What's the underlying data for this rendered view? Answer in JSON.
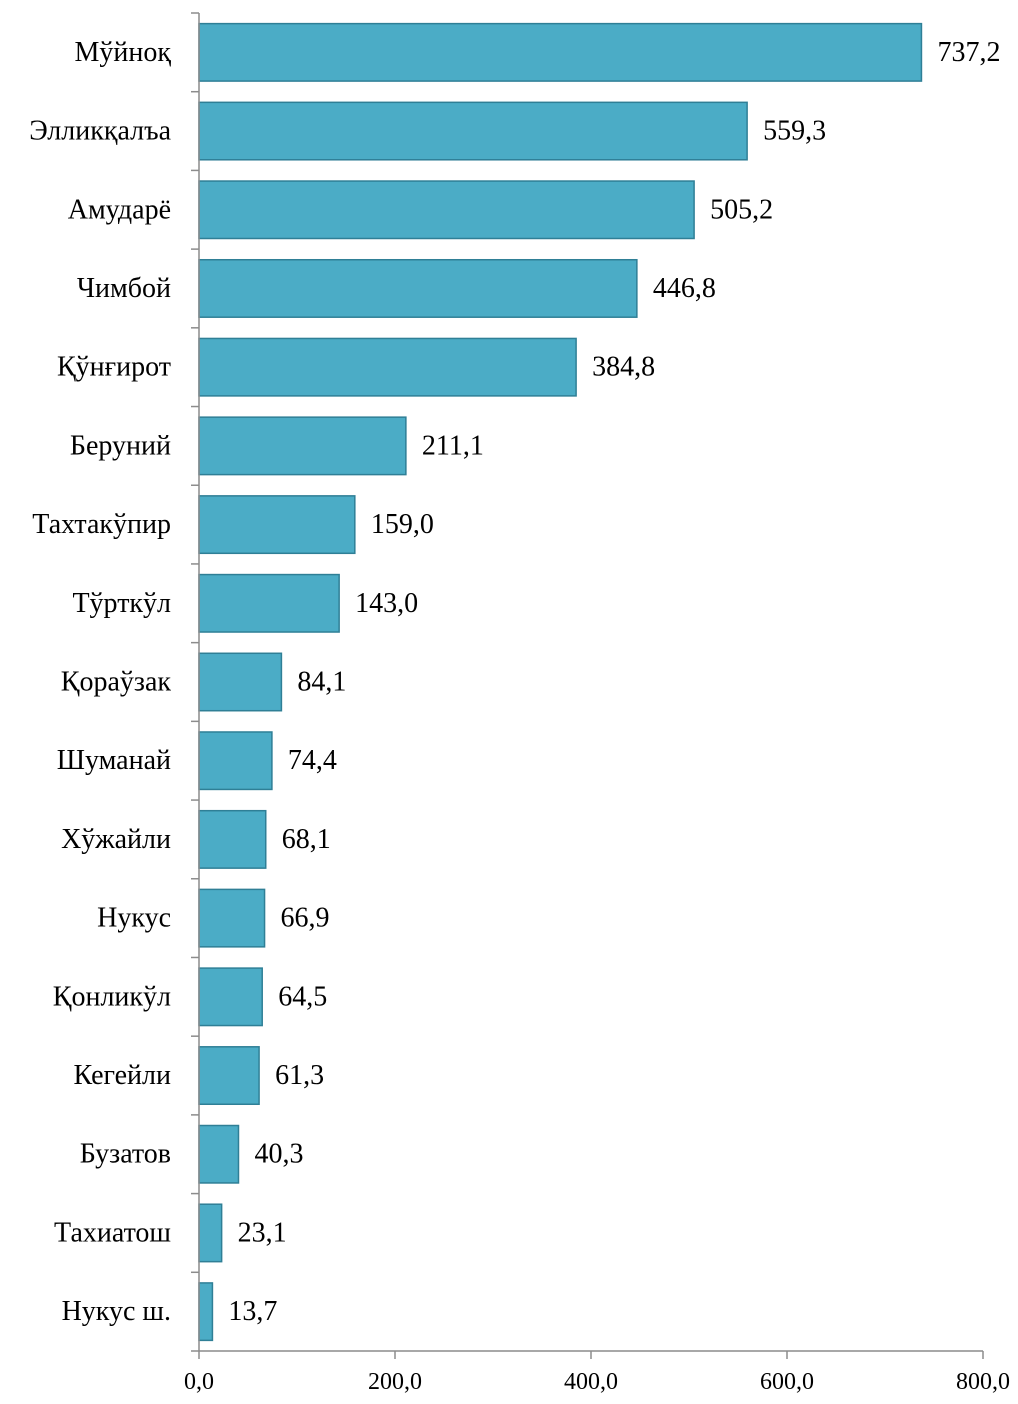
{
  "chart_data": {
    "type": "bar",
    "orientation": "horizontal",
    "categories": [
      "Мўйноқ",
      "Элликқалъа",
      "Амударё",
      "Чимбой",
      "Қўнғирот",
      "Беруний",
      "Тахтакўпир",
      "Тўрткўл",
      "Қораўзак",
      "Шуманай",
      "Хўжайли",
      "Нукус",
      "Қонликўл",
      "Кегейли",
      "Бузатов",
      "Тахиатош",
      "Нукус ш."
    ],
    "values": [
      737.2,
      559.3,
      505.2,
      446.8,
      384.8,
      211.1,
      159.0,
      143.0,
      84.1,
      74.4,
      68.1,
      66.9,
      64.5,
      61.3,
      40.3,
      23.1,
      13.7
    ],
    "value_labels": [
      "737,2",
      "559,3",
      "505,2",
      "446,8",
      "384,8",
      "211,1",
      "159,0",
      "143,0",
      "84,1",
      "74,4",
      "68,1",
      "66,9",
      "64,5",
      "61,3",
      "40,3",
      "23,1",
      "13,7"
    ],
    "xlim": [
      0,
      800
    ],
    "xticks": [
      0,
      200,
      400,
      600,
      800
    ],
    "xtick_labels": [
      "0,0",
      "200,0",
      "400,0",
      "600,0",
      "800,0"
    ],
    "title": "",
    "xlabel": "",
    "ylabel": "",
    "grid": false,
    "legend": "none",
    "colors": {
      "bar_fill": "#4bacc6",
      "bar_stroke": "#2f7f96",
      "axis": "#8c8c8c"
    }
  }
}
